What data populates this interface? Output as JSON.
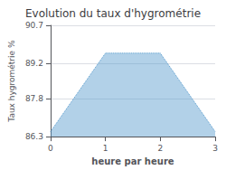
{
  "chart_data": {
    "type": "area",
    "title": "Evolution du taux d'hygrométrie",
    "x_label": "heure par heure",
    "y_label": "Taux hygrométrie %",
    "x": [
      0,
      1,
      2,
      3
    ],
    "values": [
      86.5,
      89.6,
      89.6,
      86.5
    ],
    "color": "#5599cc",
    "line_style": "dotted",
    "xlim": [
      0,
      3
    ],
    "xticks": [
      0,
      1,
      2,
      3
    ],
    "ylim": [
      86.3,
      90.7
    ],
    "yticks": [
      86.3,
      87.8,
      89.2,
      90.7
    ],
    "grid": "y"
  }
}
